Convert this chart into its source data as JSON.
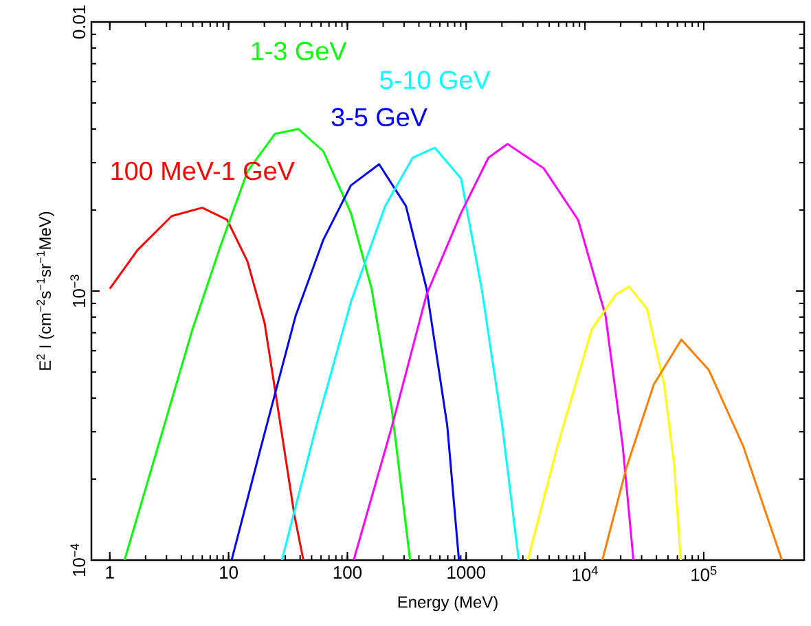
{
  "chart_data": {
    "type": "line",
    "xlabel": "Energy (MeV)",
    "ylabel": "E$^{2}$ I (cm$^{−2}$s$^{−1}$sr$^{−1}$MeV)",
    "log": "xy",
    "marker": "none",
    "line_style": "solid",
    "grid": false,
    "legend": false,
    "xlim": [
      0.7,
      700000
    ],
    "ylim": [
      0.0001,
      0.01
    ],
    "xticks": [
      1,
      10,
      100,
      1000,
      {
        "value": 10000,
        "label": "10$^{4}$"
      },
      {
        "value": 100000,
        "label": "10$^{5}$"
      }
    ],
    "yticks": [
      {
        "value": 0.0001,
        "label": "10$^{−4}$"
      },
      {
        "value": 0.001,
        "label": "10$^{−3}$"
      },
      0.01
    ],
    "series": [
      {
        "name": "100 MeV-1 GeV",
        "color": "#ff0000",
        "x": [
          1,
          1.71,
          3.32,
          6.0,
          9.7,
          14.4,
          20.1,
          26.3,
          35.8,
          42.6
        ],
        "values": [
          0.00102,
          0.00142,
          0.0019,
          0.00204,
          0.00184,
          0.00129,
          0.00076,
          0.000355,
          0.000147,
          0.0001
        ]
      },
      {
        "name": "1-3 GeV",
        "color": "#00ff00",
        "x": [
          1.33,
          2.55,
          4.96,
          8.5,
          14.4,
          24.6,
          38.7,
          62.7,
          107,
          160,
          238,
          337
        ],
        "values": [
          0.0001,
          0.000265,
          0.00072,
          0.00146,
          0.00278,
          0.00384,
          0.004,
          0.00331,
          0.00195,
          0.00102,
          0.000356,
          0.0001
        ]
      },
      {
        "name": "3-5 GeV",
        "color": "#0000ff",
        "x": [
          10.6,
          18.8,
          36.7,
          62.7,
          107,
          185,
          311,
          464,
          693,
          869
        ],
        "values": [
          0.0001,
          0.000265,
          0.00081,
          0.00155,
          0.00247,
          0.00296,
          0.00207,
          0.00102,
          0.000316,
          0.0001
        ]
      },
      {
        "name": "5-10 GeV",
        "color": "#00ffff",
        "x": [
          28.1,
          54.8,
          107,
          208,
          355,
          545,
          905,
          1350,
          2010,
          2770
        ],
        "values": [
          0.0001,
          0.000316,
          0.00091,
          0.00207,
          0.00313,
          0.00341,
          0.00262,
          0.00102,
          0.000316,
          0.0001
        ]
      },
      {
        "color": "#ff00ff",
        "x": [
          113,
          238,
          464,
          905,
          1540,
          2230,
          4490,
          8750,
          14900,
          20800,
          25600
        ],
        "values": [
          0.0001,
          0.000316,
          0.00097,
          0.00195,
          0.00313,
          0.00352,
          0.00286,
          0.00184,
          0.00081,
          0.000265,
          0.0001
        ]
      },
      {
        "color": "#ffff00",
        "x": [
          3300,
          5860,
          11400,
          18200,
          23500,
          33200,
          46400,
          56700,
          64000
        ],
        "values": [
          0.0001,
          0.000265,
          0.00072,
          0.00097,
          0.00104,
          0.00086,
          0.00045,
          0.00022,
          0.0001
        ]
      },
      {
        "color": "#ff8000",
        "x": [
          14000,
          22300,
          38000,
          64800,
          110000,
          215000,
          455000
        ],
        "values": [
          0.0001,
          0.00022,
          0.00045,
          0.00066,
          0.00051,
          0.000265,
          0.0001
        ]
      }
    ]
  }
}
